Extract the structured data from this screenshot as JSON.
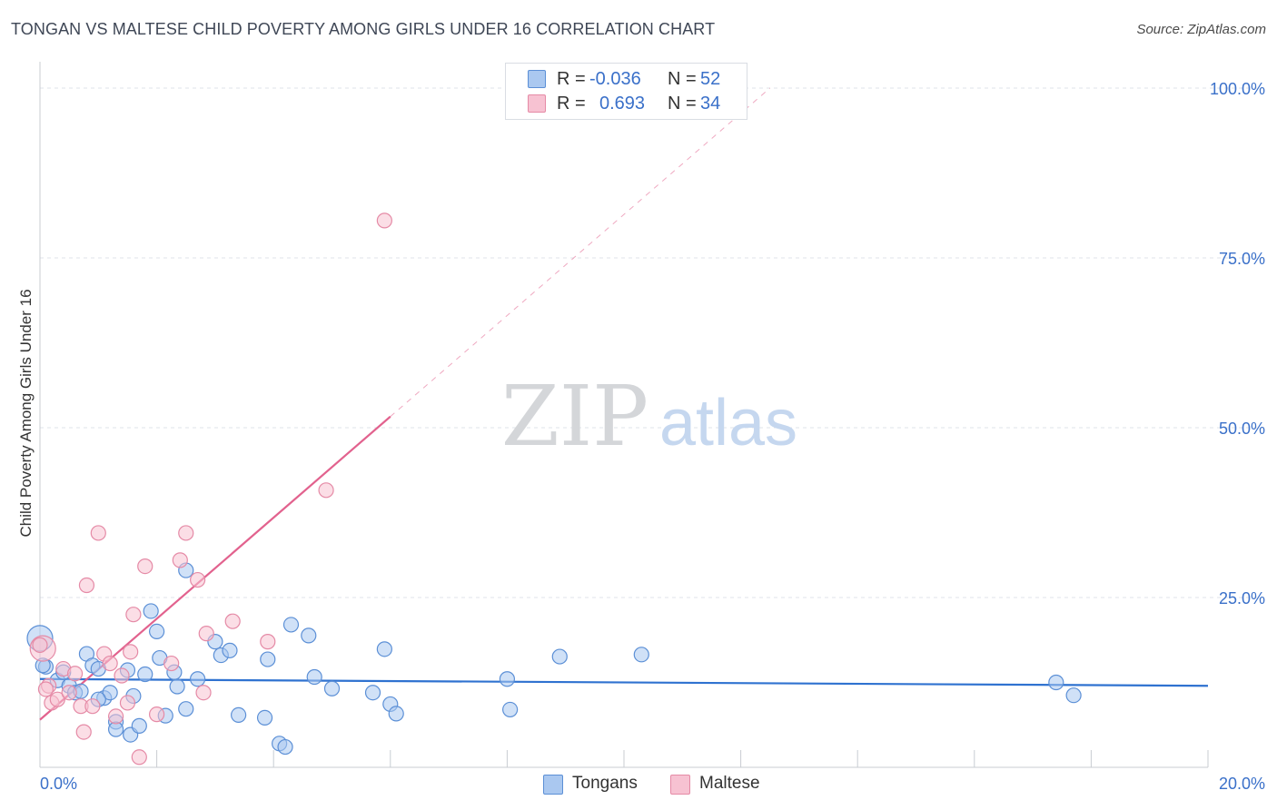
{
  "title": "TONGAN VS MALTESE CHILD POVERTY AMONG GIRLS UNDER 16 CORRELATION CHART",
  "source": "Source: ZipAtlas.com",
  "watermark": {
    "zip": "ZIP",
    "atlas": "atlas"
  },
  "legend_top": {
    "rows": [
      {
        "r_label": "R =",
        "r_value": "-0.036",
        "n_label": "N =",
        "n_value": "52"
      },
      {
        "r_label": "R =",
        "r_value": "0.693",
        "n_label": "N =",
        "n_value": "34"
      }
    ]
  },
  "legend_bottom": [
    "Tongans",
    "Maltese"
  ],
  "colors": {
    "blue_fill": "#aac8f0",
    "blue_stroke": "#5b8fd6",
    "blue_line": "#2f72d0",
    "pink_fill": "#f7c2d2",
    "pink_stroke": "#e58aa6",
    "pink_line": "#e2628e",
    "axis_label": "#3a70c9",
    "grid": "#dfe3e8"
  },
  "chart_data": {
    "type": "scatter",
    "title": "TONGAN VS MALTESE CHILD POVERTY AMONG GIRLS UNDER 16 CORRELATION CHART",
    "xlabel": "",
    "ylabel": "Child Poverty Among Girls Under 16",
    "xlim": [
      0,
      20
    ],
    "ylim": [
      0,
      100
    ],
    "x_tick_labels": [
      "0.0%",
      "20.0%"
    ],
    "y_tick_labels": [
      "25.0%",
      "50.0%",
      "75.0%",
      "100.0%"
    ],
    "y_ticks": [
      25,
      50,
      75,
      100
    ],
    "grid": true,
    "legend_position": "top-center",
    "series": [
      {
        "name": "Tongans",
        "r": -0.036,
        "n": 52,
        "trend": {
          "x": [
            0,
            20
          ],
          "y": [
            13.0,
            12.0
          ],
          "solid_to": 20
        },
        "points": [
          [
            0.0,
            19.0
          ],
          [
            0.1,
            14.8
          ],
          [
            0.3,
            12.8
          ],
          [
            0.4,
            14.0
          ],
          [
            0.5,
            12.0
          ],
          [
            0.6,
            11.0
          ],
          [
            0.7,
            11.2
          ],
          [
            0.8,
            16.7
          ],
          [
            0.9,
            15.0
          ],
          [
            1.0,
            14.5
          ],
          [
            1.1,
            10.2
          ],
          [
            1.2,
            11.0
          ],
          [
            1.3,
            6.7
          ],
          [
            1.3,
            5.6
          ],
          [
            1.5,
            14.3
          ],
          [
            1.6,
            10.5
          ],
          [
            1.55,
            4.8
          ],
          [
            1.7,
            6.1
          ],
          [
            1.8,
            13.7
          ],
          [
            1.9,
            23.0
          ],
          [
            2.0,
            20.0
          ],
          [
            2.05,
            16.1
          ],
          [
            2.15,
            7.6
          ],
          [
            2.3,
            14.0
          ],
          [
            2.35,
            11.9
          ],
          [
            2.5,
            8.6
          ],
          [
            2.5,
            29.0
          ],
          [
            2.7,
            13.0
          ],
          [
            3.0,
            18.5
          ],
          [
            3.1,
            16.5
          ],
          [
            3.25,
            17.2
          ],
          [
            3.4,
            7.7
          ],
          [
            3.85,
            7.3
          ],
          [
            3.9,
            15.9
          ],
          [
            4.1,
            3.5
          ],
          [
            4.2,
            3.0
          ],
          [
            4.3,
            21.0
          ],
          [
            4.6,
            19.4
          ],
          [
            4.7,
            13.3
          ],
          [
            5.0,
            11.6
          ],
          [
            5.7,
            11.0
          ],
          [
            5.9,
            17.4
          ],
          [
            6.0,
            9.3
          ],
          [
            6.1,
            7.9
          ],
          [
            8.0,
            13.0
          ],
          [
            8.05,
            8.5
          ],
          [
            8.9,
            16.3
          ],
          [
            10.3,
            16.6
          ],
          [
            17.4,
            12.5
          ],
          [
            17.7,
            10.6
          ],
          [
            0.05,
            15.0
          ],
          [
            1.0,
            10.0
          ]
        ]
      },
      {
        "name": "Maltese",
        "r": 0.693,
        "n": 34,
        "trend": {
          "x": [
            0,
            12.5
          ],
          "y": [
            7.0,
            100.0
          ],
          "solid_to": 6.0
        },
        "points": [
          [
            0.05,
            17.5
          ],
          [
            0.15,
            12.0
          ],
          [
            0.2,
            9.5
          ],
          [
            0.3,
            10.0
          ],
          [
            0.4,
            14.5
          ],
          [
            0.5,
            11.0
          ],
          [
            0.6,
            13.8
          ],
          [
            0.7,
            9.0
          ],
          [
            0.75,
            5.2
          ],
          [
            0.8,
            26.8
          ],
          [
            0.9,
            9.0
          ],
          [
            1.0,
            34.5
          ],
          [
            1.1,
            16.7
          ],
          [
            1.2,
            15.3
          ],
          [
            1.3,
            7.5
          ],
          [
            1.4,
            13.5
          ],
          [
            1.5,
            9.5
          ],
          [
            1.55,
            17.0
          ],
          [
            1.6,
            22.5
          ],
          [
            1.7,
            1.5
          ],
          [
            1.8,
            29.6
          ],
          [
            2.0,
            7.8
          ],
          [
            2.25,
            15.3
          ],
          [
            2.4,
            30.5
          ],
          [
            2.5,
            34.5
          ],
          [
            2.7,
            27.6
          ],
          [
            2.8,
            11.0
          ],
          [
            2.85,
            19.7
          ],
          [
            3.3,
            21.5
          ],
          [
            3.9,
            18.5
          ],
          [
            4.9,
            40.8
          ],
          [
            5.9,
            80.5
          ],
          [
            0.0,
            18.0
          ],
          [
            0.1,
            11.5
          ]
        ]
      }
    ]
  }
}
